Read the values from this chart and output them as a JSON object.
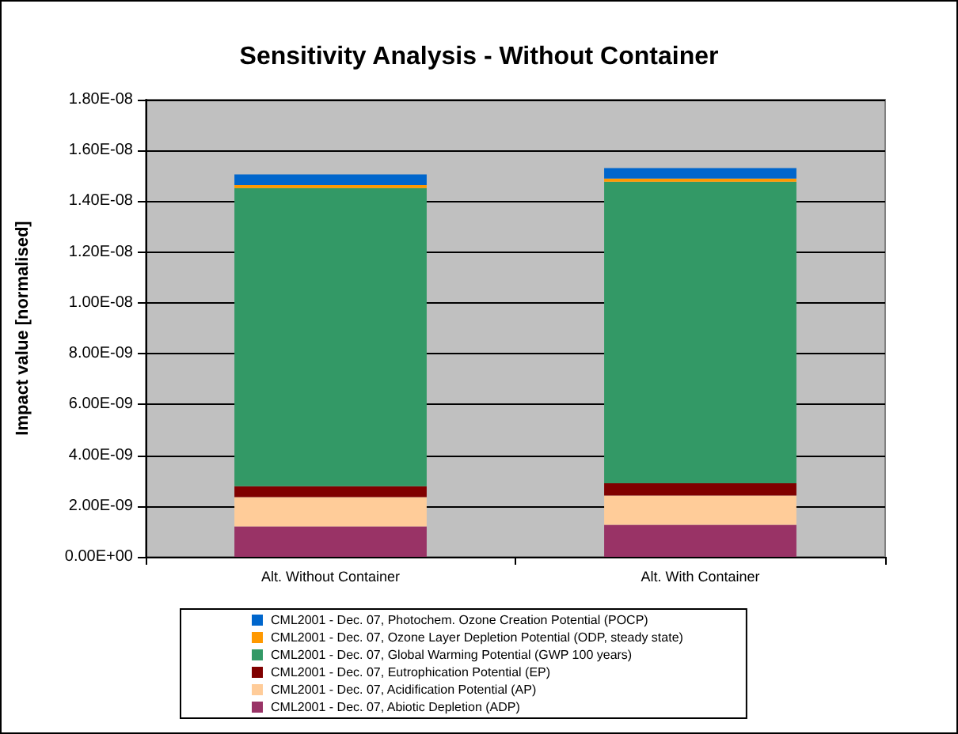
{
  "chart_data": {
    "type": "bar",
    "title": "Sensitivity Analysis - Without Container",
    "ylabel": "Impact value [normalised]",
    "stacked": true,
    "categories": [
      "Alt. Without Container",
      "Alt. With Container"
    ],
    "series": [
      {
        "name": "CML2001 - Dec. 07, Abiotic Depletion (ADP)",
        "color": "#993366",
        "values": [
          1.2e-09,
          1.26e-09
        ]
      },
      {
        "name": "CML2001 - Dec. 07, Acidification Potential (AP)",
        "color": "#ffcc99",
        "values": [
          1.15e-09,
          1.15e-09
        ]
      },
      {
        "name": "CML2001 - Dec. 07, Eutrophication Potential (EP)",
        "color": "#800000",
        "values": [
          4.3e-10,
          4.9e-10
        ]
      },
      {
        "name": "CML2001 - Dec. 07, Global Warming Potential (GWP 100 years)",
        "color": "#339966",
        "values": [
          1.174e-08,
          1.187e-08
        ]
      },
      {
        "name": "CML2001 - Dec. 07, Ozone Layer Depletion Potential (ODP, steady state)",
        "color": "#ff9900",
        "values": [
          1.2e-10,
          1.2e-10
        ]
      },
      {
        "name": "CML2001 - Dec. 07, Photochem. Ozone Creation Potential (POCP)",
        "color": "#0066cc",
        "values": [
          4.2e-10,
          4.2e-10
        ]
      }
    ],
    "ylim": [
      0,
      1.8e-08
    ],
    "yticks": [
      {
        "value": 0,
        "label": "0.00E+00"
      },
      {
        "value": 2e-09,
        "label": "2.00E-09"
      },
      {
        "value": 4e-09,
        "label": "4.00E-09"
      },
      {
        "value": 6e-09,
        "label": "6.00E-09"
      },
      {
        "value": 8e-09,
        "label": "8.00E-09"
      },
      {
        "value": 1e-08,
        "label": "1.00E-08"
      },
      {
        "value": 1.2e-08,
        "label": "1.20E-08"
      },
      {
        "value": 1.4e-08,
        "label": "1.40E-08"
      },
      {
        "value": 1.6e-08,
        "label": "1.60E-08"
      },
      {
        "value": 1.8e-08,
        "label": "1.80E-08"
      }
    ],
    "grid": "y",
    "legend": "bottom"
  }
}
